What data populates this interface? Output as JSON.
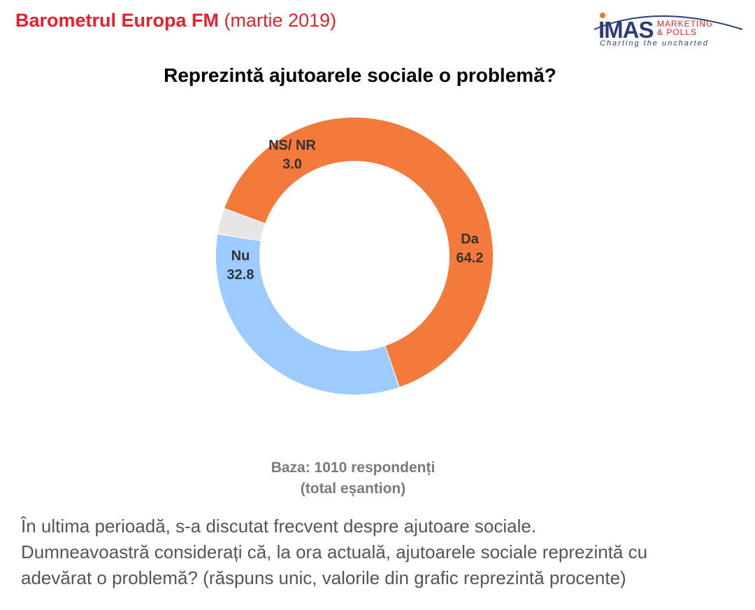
{
  "header": {
    "title_bold": "Barometrul Europa FM",
    "title_regular": "(martie 2019)"
  },
  "logo": {
    "name": "IMAS",
    "line1": "MARKETING",
    "line2": "& POLLS",
    "tagline": "Charting the uncharted",
    "colors": {
      "navy": "#2a3f7a",
      "red": "#e8202a",
      "orange": "#f47a20"
    }
  },
  "chart_data": {
    "type": "pie",
    "title": "Reprezintă ajutoarele sociale o problemă?",
    "variant": "donut",
    "start": "top, clockwise from Da",
    "slices": [
      {
        "label": "Da",
        "value": 64.2,
        "color": "#f47a3c"
      },
      {
        "label": "Nu",
        "value": 32.8,
        "color": "#9ecbff"
      },
      {
        "label": "NS/ NR",
        "value": 3.0,
        "color": "#e6e6e6"
      }
    ]
  },
  "base_note": {
    "line1": "Baza: 1010 respondenți",
    "line2": "(total eșantion)"
  },
  "question": {
    "line1": "În ultima perioadă, s-a discutat frecvent despre ajutoare sociale.",
    "line2": "Dumneavoastră considerați că, la ora actuală, ajutoarele sociale reprezintă cu",
    "line3": "adevărat o problemă? (răspuns unic, valorile din grafic reprezintă procente)"
  }
}
